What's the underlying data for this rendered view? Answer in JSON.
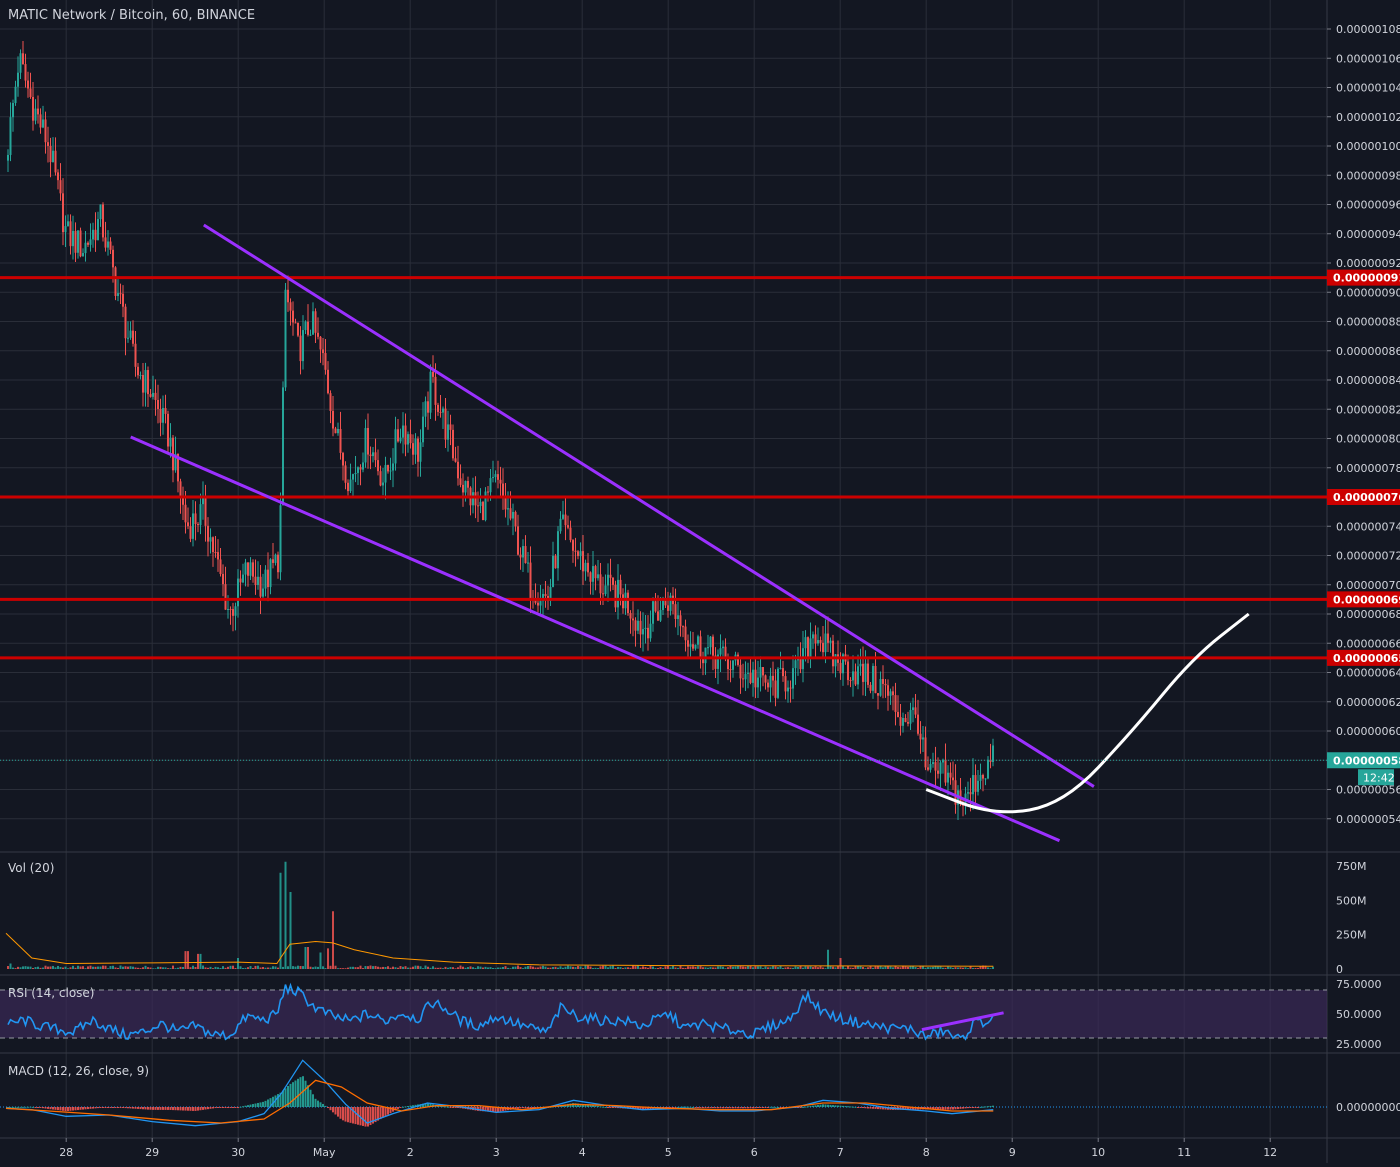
{
  "header": {
    "title": "MATIC Network / Bitcoin, 60, BINANCE"
  },
  "colors": {
    "background": "#131722",
    "grid": "#2a2e39",
    "up": "#26a69a",
    "down": "#ef5350",
    "level_line": "#cc0000",
    "trend_line": "#9b30ff",
    "projection": "#ffffff",
    "axis_text": "#d1d4dc",
    "rsi": "#2196f3",
    "rsi_band": "#3b2a57",
    "macd_line": "#2196f3",
    "signal_line": "#ff6d00",
    "volume_ma": "#ff9800"
  },
  "chart_data": [
    {
      "type": "candlestick",
      "pair": "MATIC Network / Bitcoin",
      "interval": "60",
      "exchange": "BINANCE",
      "x_axis_ticks": [
        "28",
        "29",
        "30",
        "May",
        "2",
        "3",
        "4",
        "5",
        "6",
        "7",
        "8",
        "9",
        "10",
        "11",
        "12"
      ],
      "price_axis_ticks": [
        "0.00000108",
        "0.00000106",
        "0.00000104",
        "0.00000102",
        "0.00000100",
        "0.00000098",
        "0.00000096",
        "0.00000094",
        "0.00000092",
        "0.00000090",
        "0.00000088",
        "0.00000086",
        "0.00000084",
        "0.00000082",
        "0.00000080",
        "0.00000078",
        "0.00000076",
        "0.00000074",
        "0.00000072",
        "0.00000070",
        "0.00000068",
        "0.00000066",
        "0.00000064",
        "0.00000062",
        "0.00000060",
        "0.00000058",
        "0.00000056",
        "0.00000054"
      ],
      "ylim": [
        5.24e-07,
        1.094e-06
      ],
      "xlim_days": [
        27.3,
        42.8
      ],
      "price_path": [
        [
          27.3,
          9.9e-07
        ],
        [
          27.45,
          1.06e-06
        ],
        [
          27.6,
          1.03e-06
        ],
        [
          27.8,
          1e-06
        ],
        [
          28.0,
          9.4e-07
        ],
        [
          28.2,
          9.3e-07
        ],
        [
          28.4,
          9.5e-07
        ],
        [
          28.6,
          9e-07
        ],
        [
          28.8,
          8.5e-07
        ],
        [
          29.0,
          8.3e-07
        ],
        [
          29.2,
          8e-07
        ],
        [
          29.4,
          7.4e-07
        ],
        [
          29.6,
          7.5e-07
        ],
        [
          29.9,
          6.8e-07
        ],
        [
          30.1,
          7.1e-07
        ],
        [
          30.3,
          7e-07
        ],
        [
          30.48,
          7.2e-07
        ],
        [
          30.55,
          9e-07
        ],
        [
          30.7,
          8.6e-07
        ],
        [
          30.85,
          8.8e-07
        ],
        [
          31.0,
          8.5e-07
        ],
        [
          31.15,
          8e-07
        ],
        [
          31.3,
          7.7e-07
        ],
        [
          31.5,
          8e-07
        ],
        [
          31.7,
          7.7e-07
        ],
        [
          31.9,
          8.1e-07
        ],
        [
          32.1,
          7.9e-07
        ],
        [
          32.25,
          8.4e-07
        ],
        [
          32.45,
          8e-07
        ],
        [
          32.6,
          7.7e-07
        ],
        [
          32.8,
          7.5e-07
        ],
        [
          33.0,
          7.7e-07
        ],
        [
          33.2,
          7.4e-07
        ],
        [
          33.4,
          7e-07
        ],
        [
          33.6,
          6.9e-07
        ],
        [
          33.75,
          7.4e-07
        ],
        [
          33.95,
          7.2e-07
        ],
        [
          34.2,
          7e-07
        ],
        [
          34.5,
          6.9e-07
        ],
        [
          34.7,
          6.7e-07
        ],
        [
          35.0,
          6.9e-07
        ],
        [
          35.3,
          6.6e-07
        ],
        [
          35.6,
          6.5e-07
        ],
        [
          35.9,
          6.4e-07
        ],
        [
          36.2,
          6.3e-07
        ],
        [
          36.5,
          6.4e-07
        ],
        [
          36.7,
          6.7e-07
        ],
        [
          36.9,
          6.5e-07
        ],
        [
          37.2,
          6.4e-07
        ],
        [
          37.5,
          6.3e-07
        ],
        [
          37.7,
          6.1e-07
        ],
        [
          37.9,
          6.1e-07
        ],
        [
          38.0,
          5.7e-07
        ],
        [
          38.2,
          5.7e-07
        ],
        [
          38.45,
          5.5e-07
        ],
        [
          38.6,
          5.7e-07
        ],
        [
          38.78,
          5.8e-07
        ]
      ],
      "last_price": "0.00000058",
      "countdown": "12:42",
      "horizontal_levels": [
        "0.00000091",
        "0.00000076",
        "0.00000069",
        "0.00000065"
      ],
      "trend_lines": [
        {
          "name": "upper",
          "from": [
            29.6,
            9.46e-07
          ],
          "to": [
            39.95,
            5.62e-07
          ]
        },
        {
          "name": "lower",
          "from": [
            28.75,
            8.01e-07
          ],
          "to": [
            39.55,
            5.25e-07
          ]
        }
      ],
      "projection_curve": [
        [
          38.0,
          5.6e-07
        ],
        [
          38.8,
          5.42e-07
        ],
        [
          39.6,
          5.5e-07
        ],
        [
          40.4,
          6e-07
        ],
        [
          41.1,
          6.5e-07
        ],
        [
          41.75,
          6.8e-07
        ]
      ]
    },
    {
      "type": "bar",
      "title": "Vol (20)",
      "axis_ticks": [
        "750M",
        "500M",
        "250M",
        "0"
      ],
      "ylim": [
        0,
        800
      ],
      "typical_volume": 15,
      "spikes": [
        [
          27.35,
          40
        ],
        [
          30.5,
          700
        ],
        [
          30.55,
          780
        ],
        [
          30.6,
          560
        ],
        [
          30.8,
          160
        ],
        [
          30.95,
          120
        ],
        [
          31.1,
          420
        ],
        [
          31.05,
          150
        ],
        [
          36.85,
          140
        ],
        [
          37.0,
          80
        ],
        [
          29.4,
          130
        ],
        [
          29.55,
          110
        ],
        [
          30.0,
          80
        ]
      ],
      "ma_path": [
        [
          27.3,
          260
        ],
        [
          27.6,
          80
        ],
        [
          28.0,
          40
        ],
        [
          29.0,
          45
        ],
        [
          30.0,
          50
        ],
        [
          30.45,
          40
        ],
        [
          30.6,
          180
        ],
        [
          30.9,
          200
        ],
        [
          31.1,
          190
        ],
        [
          31.35,
          140
        ],
        [
          31.8,
          80
        ],
        [
          32.5,
          50
        ],
        [
          33.5,
          30
        ],
        [
          35.0,
          25
        ],
        [
          38.78,
          20
        ]
      ]
    },
    {
      "type": "line",
      "title": "RSI (14, close)",
      "axis_ticks": [
        "75.0000",
        "50.0000",
        "25.0000"
      ],
      "ylim": [
        20,
        80
      ],
      "bands": [
        70,
        30
      ],
      "rsi": [
        [
          27.3,
          40
        ],
        [
          27.5,
          45
        ],
        [
          27.7,
          40
        ],
        [
          27.9,
          37
        ],
        [
          28.1,
          35
        ],
        [
          28.3,
          45
        ],
        [
          28.5,
          38
        ],
        [
          28.7,
          32
        ],
        [
          28.9,
          35
        ],
        [
          29.1,
          42
        ],
        [
          29.3,
          35
        ],
        [
          29.5,
          40
        ],
        [
          29.7,
          33
        ],
        [
          29.9,
          32
        ],
        [
          30.1,
          48
        ],
        [
          30.3,
          45
        ],
        [
          30.45,
          50
        ],
        [
          30.55,
          72
        ],
        [
          30.7,
          68
        ],
        [
          30.9,
          55
        ],
        [
          31.1,
          48
        ],
        [
          31.3,
          44
        ],
        [
          31.5,
          50
        ],
        [
          31.7,
          44
        ],
        [
          31.9,
          51
        ],
        [
          32.1,
          46
        ],
        [
          32.25,
          60
        ],
        [
          32.4,
          55
        ],
        [
          32.6,
          44
        ],
        [
          32.8,
          40
        ],
        [
          33.0,
          48
        ],
        [
          33.2,
          43
        ],
        [
          33.4,
          38
        ],
        [
          33.6,
          35
        ],
        [
          33.75,
          55
        ],
        [
          33.95,
          48
        ],
        [
          34.2,
          45
        ],
        [
          34.5,
          44
        ],
        [
          34.7,
          40
        ],
        [
          35.0,
          50
        ],
        [
          35.2,
          38
        ],
        [
          35.4,
          42
        ],
        [
          35.6,
          38
        ],
        [
          35.8,
          36
        ],
        [
          36.0,
          33
        ],
        [
          36.2,
          40
        ],
        [
          36.4,
          45
        ],
        [
          36.6,
          65
        ],
        [
          36.8,
          52
        ],
        [
          37.0,
          46
        ],
        [
          37.2,
          43
        ],
        [
          37.4,
          40
        ],
        [
          37.6,
          38
        ],
        [
          37.8,
          38
        ],
        [
          38.0,
          31
        ],
        [
          38.2,
          36
        ],
        [
          38.4,
          28
        ],
        [
          38.55,
          42
        ],
        [
          38.78,
          45
        ]
      ],
      "divergence_line": {
        "from": [
          37.95,
          37
        ],
        "to": [
          38.9,
          51
        ]
      }
    },
    {
      "type": "line",
      "title": "MACD (12, 26, close, 9)",
      "axis_ticks": [
        "0.00000000"
      ],
      "ylim": [
        -4.2e-08,
        7.2e-08
      ],
      "macd": [
        [
          27.3,
          -2e-09
        ],
        [
          27.6,
          -4e-09
        ],
        [
          28.0,
          -1.4e-08
        ],
        [
          28.5,
          -1.2e-08
        ],
        [
          29.0,
          -2.2e-08
        ],
        [
          29.5,
          -2.8e-08
        ],
        [
          30.0,
          -2.2e-08
        ],
        [
          30.3,
          -1e-08
        ],
        [
          30.5,
          2e-08
        ],
        [
          30.75,
          7e-08
        ],
        [
          31.0,
          4e-08
        ],
        [
          31.25,
          4e-09
        ],
        [
          31.5,
          -2.4e-08
        ],
        [
          31.8,
          -1e-08
        ],
        [
          32.2,
          6e-09
        ],
        [
          32.6,
          0.0
        ],
        [
          33.0,
          -8e-09
        ],
        [
          33.5,
          -4e-09
        ],
        [
          33.9,
          1e-08
        ],
        [
          34.3,
          2e-09
        ],
        [
          34.7,
          -4e-09
        ],
        [
          35.2,
          -2e-09
        ],
        [
          35.6,
          -6e-09
        ],
        [
          36.0,
          -6e-09
        ],
        [
          36.5,
          0.0
        ],
        [
          36.8,
          1e-08
        ],
        [
          37.2,
          6e-09
        ],
        [
          37.6,
          -2e-09
        ],
        [
          38.0,
          -6e-09
        ],
        [
          38.3,
          -1e-08
        ],
        [
          38.78,
          -4e-09
        ]
      ],
      "signal": [
        [
          27.3,
          -2e-09
        ],
        [
          27.8,
          -6e-09
        ],
        [
          28.5,
          -1.2e-08
        ],
        [
          29.2,
          -2e-08
        ],
        [
          29.8,
          -2.4e-08
        ],
        [
          30.3,
          -1.8e-08
        ],
        [
          30.6,
          6e-09
        ],
        [
          30.9,
          4e-08
        ],
        [
          31.2,
          3e-08
        ],
        [
          31.5,
          6e-09
        ],
        [
          31.9,
          -6e-09
        ],
        [
          32.3,
          2e-09
        ],
        [
          32.8,
          2e-09
        ],
        [
          33.3,
          -4e-09
        ],
        [
          33.9,
          4e-09
        ],
        [
          34.4,
          2e-09
        ],
        [
          35.0,
          -2e-09
        ],
        [
          35.6,
          -4e-09
        ],
        [
          36.2,
          -4e-09
        ],
        [
          36.8,
          6e-09
        ],
        [
          37.3,
          6e-09
        ],
        [
          37.8,
          0.0
        ],
        [
          38.3,
          -6e-09
        ],
        [
          38.78,
          -6e-09
        ]
      ]
    }
  ]
}
